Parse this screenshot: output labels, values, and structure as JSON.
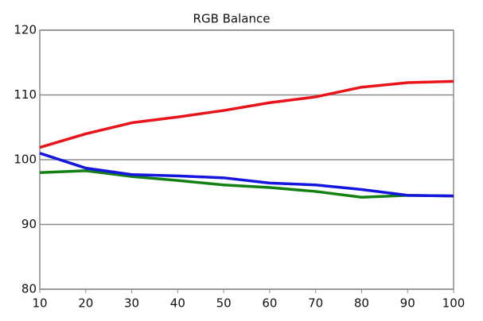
{
  "chart_data": {
    "type": "line",
    "title": "RGB Balance",
    "x": [
      10,
      20,
      30,
      40,
      50,
      60,
      70,
      80,
      90,
      100
    ],
    "series": [
      {
        "color": "#e8141a",
        "values": [
          101.9,
          104.0,
          105.7,
          106.6,
          107.6,
          108.8,
          109.7,
          111.2,
          111.9,
          112.1
        ]
      },
      {
        "color": "#138013",
        "values": [
          98.0,
          98.3,
          97.4,
          96.8,
          96.1,
          95.7,
          95.1,
          94.2,
          94.5,
          94.4
        ]
      },
      {
        "color": "#1515e0",
        "values": [
          101.0,
          98.7,
          97.7,
          97.5,
          97.2,
          96.4,
          96.1,
          95.4,
          94.5,
          94.4
        ]
      }
    ],
    "xlim": [
      10,
      100
    ],
    "xticks": [
      10,
      20,
      30,
      40,
      50,
      60,
      70,
      80,
      90,
      100
    ],
    "ylim": [
      80,
      120
    ],
    "yticks": [
      80,
      90,
      100,
      110,
      120
    ],
    "grid": true
  }
}
